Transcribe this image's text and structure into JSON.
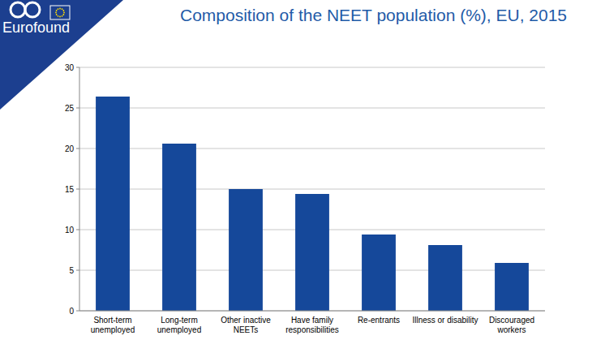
{
  "chart_data": {
    "type": "bar",
    "title": "Composition of the NEET population (%), EU, 2015",
    "annotations": [
      "Eurofound"
    ],
    "categories": [
      "Short-term unemployed",
      "Long-term unemployed",
      "Other inactive NEETs",
      "Have family responsibilities",
      "Re-entrants",
      "Illness or disability",
      "Discouraged workers"
    ],
    "values": [
      26.4,
      20.6,
      15.0,
      14.4,
      9.4,
      8.1,
      5.9
    ],
    "color": "#15489a",
    "ylim": [
      0,
      30
    ],
    "yticks": [
      0,
      5,
      10,
      15,
      20,
      25,
      30
    ],
    "grid": true
  }
}
